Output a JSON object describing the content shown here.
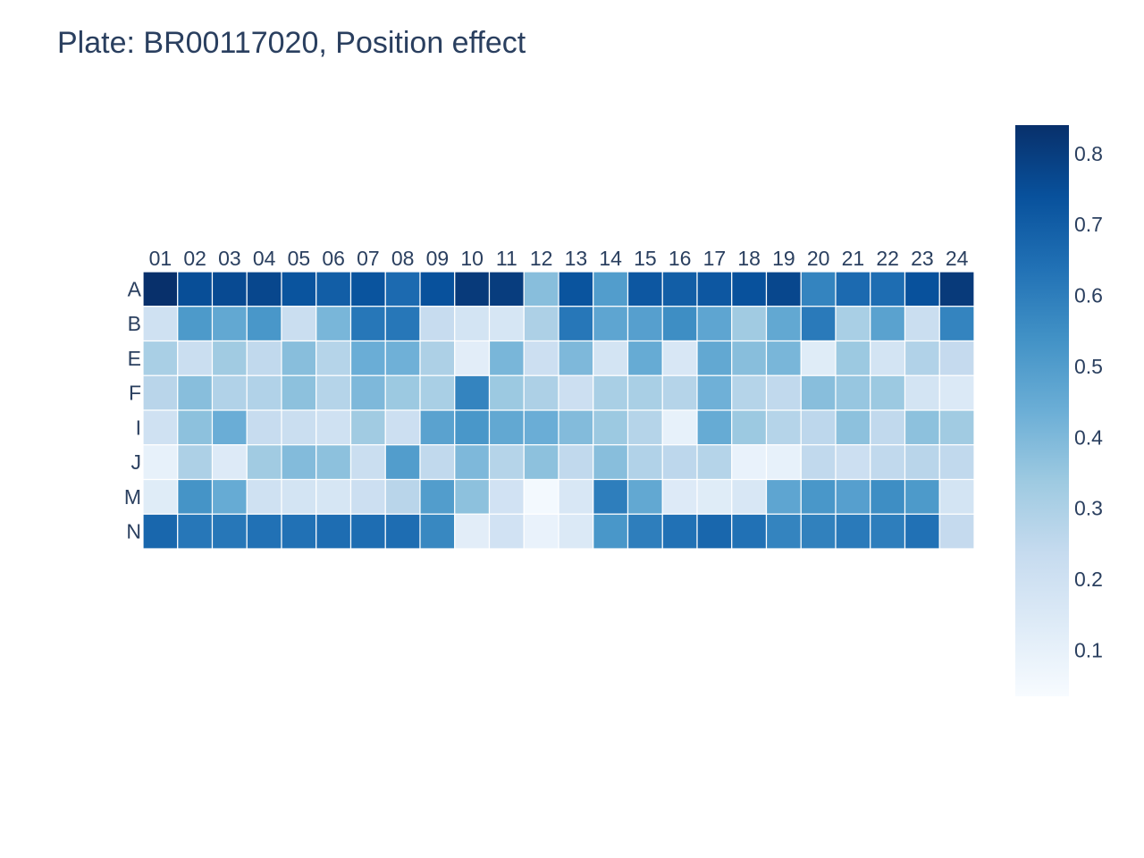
{
  "chart_data": {
    "type": "heatmap",
    "title": "Plate: BR00117020, Position effect",
    "x": [
      "01",
      "02",
      "03",
      "04",
      "05",
      "06",
      "07",
      "08",
      "09",
      "10",
      "11",
      "12",
      "13",
      "14",
      "15",
      "16",
      "17",
      "18",
      "19",
      "20",
      "21",
      "22",
      "23",
      "24"
    ],
    "y": [
      "A",
      "B",
      "E",
      "F",
      "I",
      "J",
      "M",
      "N"
    ],
    "z": [
      [
        0.84,
        0.75,
        0.76,
        0.77,
        0.73,
        0.7,
        0.73,
        0.66,
        0.74,
        0.81,
        0.8,
        0.38,
        0.73,
        0.5,
        0.72,
        0.7,
        0.72,
        0.74,
        0.77,
        0.58,
        0.66,
        0.65,
        0.74,
        0.81
      ],
      [
        0.2,
        0.51,
        0.46,
        0.52,
        0.22,
        0.41,
        0.62,
        0.62,
        0.23,
        0.18,
        0.17,
        0.3,
        0.62,
        0.47,
        0.49,
        0.55,
        0.47,
        0.33,
        0.46,
        0.61,
        0.31,
        0.48,
        0.22,
        0.58
      ],
      [
        0.31,
        0.22,
        0.33,
        0.25,
        0.38,
        0.28,
        0.44,
        0.43,
        0.3,
        0.12,
        0.41,
        0.21,
        0.4,
        0.18,
        0.45,
        0.16,
        0.46,
        0.38,
        0.41,
        0.13,
        0.34,
        0.18,
        0.29,
        0.24
      ],
      [
        0.27,
        0.38,
        0.29,
        0.29,
        0.37,
        0.28,
        0.4,
        0.34,
        0.31,
        0.58,
        0.34,
        0.3,
        0.21,
        0.31,
        0.31,
        0.28,
        0.43,
        0.28,
        0.25,
        0.38,
        0.35,
        0.34,
        0.18,
        0.15
      ],
      [
        0.2,
        0.37,
        0.44,
        0.23,
        0.22,
        0.2,
        0.33,
        0.21,
        0.48,
        0.52,
        0.46,
        0.44,
        0.39,
        0.34,
        0.28,
        0.1,
        0.45,
        0.34,
        0.28,
        0.26,
        0.37,
        0.25,
        0.37,
        0.33
      ],
      [
        0.1,
        0.3,
        0.14,
        0.33,
        0.39,
        0.37,
        0.22,
        0.5,
        0.25,
        0.4,
        0.28,
        0.37,
        0.25,
        0.38,
        0.29,
        0.26,
        0.28,
        0.09,
        0.1,
        0.25,
        0.21,
        0.25,
        0.27,
        0.25
      ],
      [
        0.13,
        0.53,
        0.45,
        0.2,
        0.18,
        0.17,
        0.21,
        0.27,
        0.5,
        0.37,
        0.19,
        0.05,
        0.16,
        0.6,
        0.46,
        0.14,
        0.13,
        0.16,
        0.47,
        0.52,
        0.49,
        0.55,
        0.51,
        0.18
      ],
      [
        0.67,
        0.62,
        0.62,
        0.64,
        0.64,
        0.65,
        0.65,
        0.65,
        0.57,
        0.12,
        0.19,
        0.09,
        0.15,
        0.52,
        0.6,
        0.64,
        0.67,
        0.64,
        0.58,
        0.59,
        0.61,
        0.6,
        0.64,
        0.24
      ]
    ],
    "colorscale": "Blues",
    "zmin": 0.035,
    "zmax": 0.84,
    "colorbar": {
      "tickvals": [
        0.1,
        0.2,
        0.3,
        0.4,
        0.5,
        0.6,
        0.7,
        0.8
      ],
      "ticktext": [
        "0.1",
        "0.2",
        "0.3",
        "0.4",
        "0.5",
        "0.6",
        "0.7",
        "0.8"
      ]
    },
    "xaxis_side": "top",
    "grid": false
  }
}
